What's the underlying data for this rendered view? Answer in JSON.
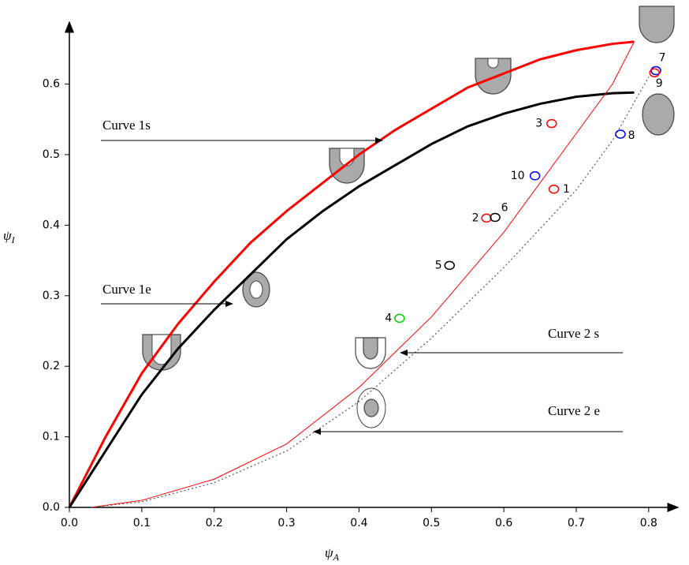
{
  "chart_data": {
    "type": "line",
    "xlabel": {
      "symbol": "ψ",
      "subscript": "A"
    },
    "ylabel": {
      "symbol": "ψ",
      "subscript": "I"
    },
    "xlim": [
      0,
      0.835
    ],
    "ylim": [
      0,
      0.68
    ],
    "xticks": [
      {
        "value": 0,
        "label": "0.0"
      },
      0.1,
      0.2,
      0.3,
      0.4,
      0.5,
      0.6,
      0.7,
      0.8
    ],
    "yticks": [
      {
        "value": 0,
        "label": "0.0"
      },
      0.1,
      0.2,
      0.3,
      0.4,
      0.5,
      0.6
    ],
    "series": [
      {
        "name": "Curve 1s",
        "color": "#ff0000",
        "width": 3,
        "dash": false,
        "x": [
          0,
          0.05,
          0.1,
          0.15,
          0.2,
          0.25,
          0.3,
          0.35,
          0.4,
          0.45,
          0.5,
          0.55,
          0.6,
          0.65,
          0.7,
          0.75,
          0.78
        ],
        "values": [
          0,
          0.1,
          0.19,
          0.26,
          0.32,
          0.375,
          0.42,
          0.46,
          0.5,
          0.535,
          0.565,
          0.595,
          0.615,
          0.635,
          0.648,
          0.657,
          0.66
        ]
      },
      {
        "name": "Curve 1e",
        "color": "#000000",
        "width": 3,
        "dash": false,
        "x": [
          0,
          0.05,
          0.1,
          0.15,
          0.2,
          0.25,
          0.3,
          0.35,
          0.4,
          0.45,
          0.5,
          0.55,
          0.6,
          0.65,
          0.7,
          0.75,
          0.78
        ],
        "values": [
          0,
          0.08,
          0.16,
          0.225,
          0.28,
          0.33,
          0.38,
          0.42,
          0.455,
          0.485,
          0.515,
          0.54,
          0.558,
          0.572,
          0.582,
          0.587,
          0.588
        ]
      },
      {
        "name": "Curve 2 s",
        "color": "#ff0000",
        "width": 1,
        "dash": false,
        "x": [
          0.03,
          0.1,
          0.2,
          0.3,
          0.4,
          0.45,
          0.5,
          0.55,
          0.6,
          0.65,
          0.7,
          0.75,
          0.78
        ],
        "values": [
          0,
          0.01,
          0.04,
          0.09,
          0.17,
          0.22,
          0.27,
          0.33,
          0.39,
          0.46,
          0.53,
          0.6,
          0.66
        ]
      },
      {
        "name": "Curve 2 e",
        "color": "#555555",
        "width": 1.2,
        "dash": true,
        "x": [
          0.03,
          0.1,
          0.2,
          0.3,
          0.4,
          0.5,
          0.6,
          0.7,
          0.75,
          0.8
        ],
        "values": [
          0,
          0.008,
          0.035,
          0.08,
          0.15,
          0.24,
          0.34,
          0.45,
          0.52,
          0.61
        ]
      }
    ],
    "points": [
      {
        "label": "1",
        "x": 0.669,
        "y": 0.451,
        "color": "#ff0000"
      },
      {
        "label": "2",
        "x": 0.576,
        "y": 0.41,
        "color": "#ff0000"
      },
      {
        "label": "3",
        "x": 0.666,
        "y": 0.544,
        "color": "#ff0000"
      },
      {
        "label": "4",
        "x": 0.456,
        "y": 0.268,
        "color": "#00cc00"
      },
      {
        "label": "5",
        "x": 0.525,
        "y": 0.343,
        "color": "#000000"
      },
      {
        "label": "6",
        "x": 0.588,
        "y": 0.411,
        "color": "#000000"
      },
      {
        "label": "7",
        "x": 0.81,
        "y": 0.619,
        "color": "#0000ff"
      },
      {
        "label": "8",
        "x": 0.761,
        "y": 0.529,
        "color": "#0000ff"
      },
      {
        "label": "9",
        "x": 0.808,
        "y": 0.616,
        "color": "#ff0000"
      },
      {
        "label": "10",
        "x": 0.643,
        "y": 0.47,
        "color": "#0000ff"
      }
    ]
  }
}
